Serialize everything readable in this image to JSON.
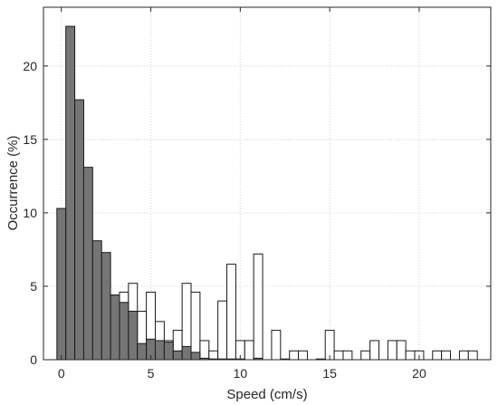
{
  "chart_data": {
    "type": "bar",
    "bin_width": 0.5,
    "xlabel": "Speed (cm/s)",
    "ylabel": "Occurrence (%)",
    "xlim": [
      -1,
      24
    ],
    "ylim": [
      0,
      24
    ],
    "xticks": [
      0,
      5,
      10,
      15,
      20
    ],
    "yticks": [
      0,
      5,
      10,
      15,
      20
    ],
    "grid": true,
    "series": [
      {
        "style": "filled",
        "color": "#757575",
        "x": [
          0,
          0.5,
          1,
          1.5,
          2,
          2.5,
          3,
          3.5,
          4,
          4.5,
          5,
          5.5,
          6,
          6.5,
          7,
          7.5,
          8,
          8.5,
          9,
          9.5,
          10,
          10.5,
          11,
          11.5,
          12,
          12.5,
          13,
          13.5,
          14,
          14.5,
          15,
          15.5,
          16,
          16.5,
          17,
          17.5,
          18,
          18.5,
          19,
          19.5,
          20,
          20.5,
          21,
          21.5,
          22,
          22.5,
          23
        ],
        "values": [
          10.3,
          22.7,
          17.7,
          13.1,
          8.1,
          7.3,
          4.4,
          3.9,
          3.3,
          1.1,
          1.4,
          1.3,
          1.2,
          0.6,
          0.9,
          0.5,
          0.1,
          0.05,
          0.05,
          0.05,
          0.05,
          0,
          0.1,
          0,
          0,
          0.05,
          0,
          0,
          0,
          0.05,
          0,
          0,
          0,
          0,
          0,
          0,
          0,
          0,
          0,
          0,
          0,
          0,
          0,
          0,
          0,
          0,
          0
        ]
      },
      {
        "style": "outline",
        "color": "#ffffff",
        "x": [
          0,
          0.5,
          1,
          1.5,
          2,
          2.5,
          3,
          3.5,
          4,
          4.5,
          5,
          5.5,
          6,
          6.5,
          7,
          7.5,
          8,
          8.5,
          9,
          9.5,
          10,
          10.5,
          11,
          11.5,
          12,
          12.5,
          13,
          13.5,
          14,
          14.5,
          15,
          15.5,
          16,
          16.5,
          17,
          17.5,
          18,
          18.5,
          19,
          19.5,
          20,
          20.5,
          21,
          21.5,
          22,
          22.5,
          23
        ],
        "values": [
          0,
          0,
          0,
          0,
          0,
          0,
          4.4,
          4.6,
          5.2,
          3.3,
          4.6,
          2.6,
          1.3,
          2.0,
          5.2,
          4.6,
          1.3,
          0.6,
          4.0,
          6.5,
          1.3,
          1.3,
          7.2,
          0,
          2.0,
          0,
          0.6,
          0.6,
          0,
          0,
          2.0,
          0.6,
          0.6,
          0,
          0.6,
          1.3,
          0,
          1.3,
          1.3,
          0.6,
          0.6,
          0,
          0.6,
          0.6,
          0,
          0.6,
          0.6
        ]
      }
    ]
  }
}
